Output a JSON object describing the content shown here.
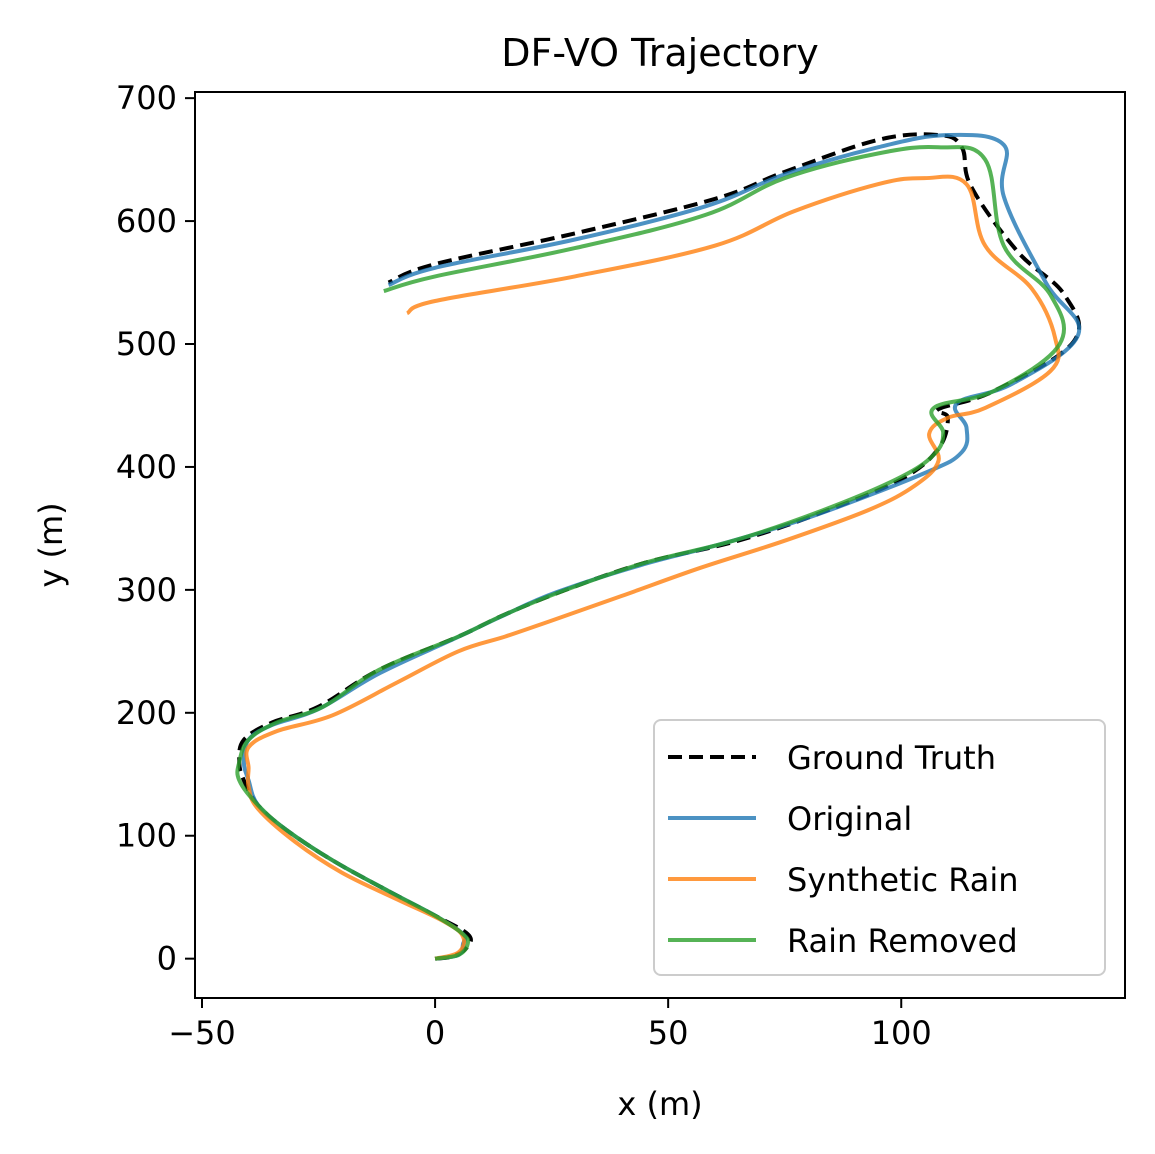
{
  "chart_data": {
    "type": "line",
    "title": "DF-VO Trajectory",
    "xlabel": "x (m)",
    "ylabel": "y (m)",
    "xlim": [
      -51.5,
      148
    ],
    "ylim": [
      -32,
      705
    ],
    "xticks": [
      -50,
      0,
      50,
      100
    ],
    "yticks": [
      0,
      100,
      200,
      300,
      400,
      500,
      600,
      700
    ],
    "grid": false,
    "legend_position": "lower-right",
    "series": [
      {
        "name": "Ground Truth",
        "color": "#000000",
        "style": "dashed",
        "points": [
          [
            0,
            0
          ],
          [
            4,
            2
          ],
          [
            7,
            10
          ],
          [
            7,
            20
          ],
          [
            0,
            35
          ],
          [
            -10,
            55
          ],
          [
            -22,
            80
          ],
          [
            -32,
            105
          ],
          [
            -38,
            125
          ],
          [
            -41,
            145
          ],
          [
            -42,
            160
          ],
          [
            -41,
            178
          ],
          [
            -35,
            192
          ],
          [
            -25,
            205
          ],
          [
            -12,
            235
          ],
          [
            5,
            262
          ],
          [
            15,
            280
          ],
          [
            28,
            300
          ],
          [
            45,
            322
          ],
          [
            65,
            340
          ],
          [
            83,
            363
          ],
          [
            100,
            390
          ],
          [
            108,
            415
          ],
          [
            110,
            440
          ],
          [
            108,
            447
          ],
          [
            120,
            462
          ],
          [
            137,
            502
          ],
          [
            135,
            540
          ],
          [
            125,
            575
          ],
          [
            115,
            628
          ],
          [
            113,
            660
          ],
          [
            108,
            670
          ],
          [
            95,
            666
          ],
          [
            75,
            640
          ],
          [
            60,
            618
          ],
          [
            30,
            590
          ],
          [
            0,
            565
          ],
          [
            -10,
            550
          ]
        ]
      },
      {
        "name": "Original",
        "color": "#1f77b4",
        "style": "solid",
        "points": [
          [
            0,
            0
          ],
          [
            5,
            3
          ],
          [
            6,
            12
          ],
          [
            6,
            20
          ],
          [
            0,
            35
          ],
          [
            -10,
            55
          ],
          [
            -22,
            80
          ],
          [
            -32,
            105
          ],
          [
            -38,
            125
          ],
          [
            -40,
            145
          ],
          [
            -41,
            160
          ],
          [
            -40,
            178
          ],
          [
            -35,
            190
          ],
          [
            -25,
            203
          ],
          [
            -12,
            232
          ],
          [
            4,
            260
          ],
          [
            14,
            278
          ],
          [
            26,
            298
          ],
          [
            44,
            320
          ],
          [
            62,
            338
          ],
          [
            81,
            360
          ],
          [
            105,
            395
          ],
          [
            113,
            412
          ],
          [
            114,
            432
          ],
          [
            112,
            452
          ],
          [
            124,
            468
          ],
          [
            138,
            508
          ],
          [
            131,
            550
          ],
          [
            122,
            620
          ],
          [
            122,
            662
          ],
          [
            110,
            670
          ],
          [
            95,
            660
          ],
          [
            75,
            638
          ],
          [
            58,
            612
          ],
          [
            30,
            585
          ],
          [
            0,
            562
          ],
          [
            -10,
            548
          ]
        ]
      },
      {
        "name": "Synthetic Rain",
        "color": "#ff7f0e",
        "style": "solid",
        "points": [
          [
            0,
            0
          ],
          [
            5,
            5
          ],
          [
            6,
            18
          ],
          [
            2,
            30
          ],
          [
            -8,
            48
          ],
          [
            -20,
            70
          ],
          [
            -30,
            95
          ],
          [
            -38,
            122
          ],
          [
            -40,
            140
          ],
          [
            -40,
            155
          ],
          [
            -40,
            172
          ],
          [
            -34,
            185
          ],
          [
            -22,
            198
          ],
          [
            -8,
            225
          ],
          [
            5,
            250
          ],
          [
            15,
            262
          ],
          [
            25,
            275
          ],
          [
            40,
            295
          ],
          [
            57,
            318
          ],
          [
            75,
            340
          ],
          [
            93,
            365
          ],
          [
            103,
            385
          ],
          [
            108,
            405
          ],
          [
            106,
            427
          ],
          [
            110,
            440
          ],
          [
            118,
            448
          ],
          [
            132,
            478
          ],
          [
            133,
            505
          ],
          [
            128,
            545
          ],
          [
            118,
            580
          ],
          [
            114,
            630
          ],
          [
            105,
            635
          ],
          [
            95,
            630
          ],
          [
            77,
            608
          ],
          [
            60,
            580
          ],
          [
            30,
            555
          ],
          [
            0,
            535
          ],
          [
            -6,
            525
          ]
        ]
      },
      {
        "name": "Rain Removed",
        "color": "#2ca02c",
        "style": "solid",
        "points": [
          [
            0,
            0
          ],
          [
            5,
            3
          ],
          [
            7,
            12
          ],
          [
            6,
            20
          ],
          [
            0,
            35
          ],
          [
            -10,
            55
          ],
          [
            -22,
            80
          ],
          [
            -32,
            105
          ],
          [
            -38,
            125
          ],
          [
            -42,
            145
          ],
          [
            -42,
            160
          ],
          [
            -40,
            178
          ],
          [
            -34,
            192
          ],
          [
            -24,
            205
          ],
          [
            -12,
            235
          ],
          [
            5,
            262
          ],
          [
            15,
            280
          ],
          [
            28,
            300
          ],
          [
            45,
            322
          ],
          [
            64,
            340
          ],
          [
            82,
            363
          ],
          [
            99,
            390
          ],
          [
            107,
            410
          ],
          [
            109,
            428
          ],
          [
            107,
            448
          ],
          [
            120,
            462
          ],
          [
            134,
            500
          ],
          [
            132,
            540
          ],
          [
            122,
            580
          ],
          [
            118,
            650
          ],
          [
            108,
            660
          ],
          [
            95,
            655
          ],
          [
            75,
            635
          ],
          [
            58,
            605
          ],
          [
            30,
            578
          ],
          [
            0,
            555
          ],
          [
            -11,
            543
          ]
        ]
      }
    ]
  }
}
